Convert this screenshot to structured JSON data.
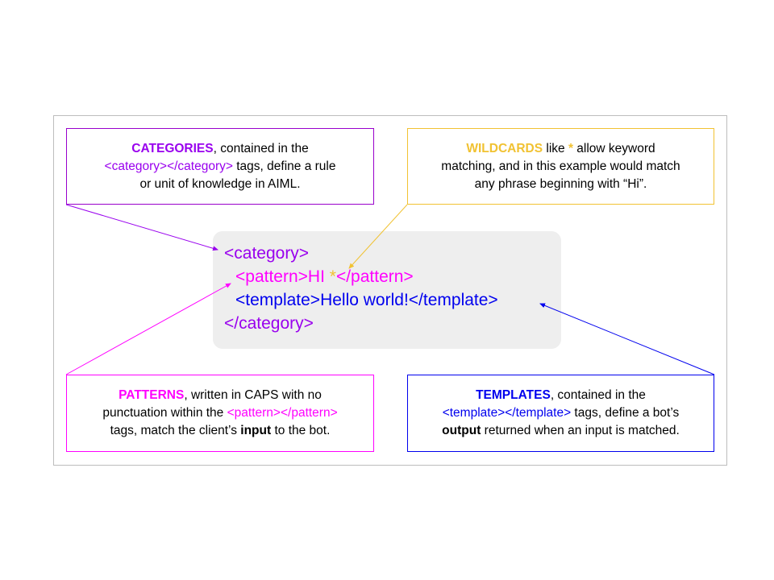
{
  "colors": {
    "category": "#9900ee",
    "wildcard": "#f1c232",
    "pattern": "#ff00ff",
    "template": "#0000ee",
    "code_bg": "#eeeeee",
    "frame": "#bdbdbd"
  },
  "categories_box": {
    "keyword": "CATEGORIES",
    "text1": ", contained in the",
    "tags": "<category></category>",
    "text2": " tags, define a rule",
    "text3": "or unit of knowledge in AIML."
  },
  "wildcards_box": {
    "keyword": "WILDCARDS",
    "text1": " like ",
    "star": "*",
    "text2": " allow keyword",
    "text3": "matching, and in this example would match",
    "text4": "any phrase beginning with “Hi”."
  },
  "patterns_box": {
    "keyword": "PATTERNS",
    "text1": ", written in CAPS with no",
    "text2": "punctuation within the ",
    "tags": "<pattern></pattern>",
    "text3": "tags, match the client’s ",
    "input_word": "input",
    "text4": " to the bot."
  },
  "templates_box": {
    "keyword": "TEMPLATES",
    "text1": ", contained in the",
    "tags": "<template></template>",
    "text2": " tags, define a bot’s",
    "output_word": "output",
    "text3": " returned when an input is matched."
  },
  "code": {
    "category_open": "<category>",
    "pattern_open": "<pattern>HI ",
    "wildcard": "*",
    "pattern_close": "</pattern>",
    "template_line": "<template>Hello world!</template>",
    "category_close": "</category>"
  }
}
